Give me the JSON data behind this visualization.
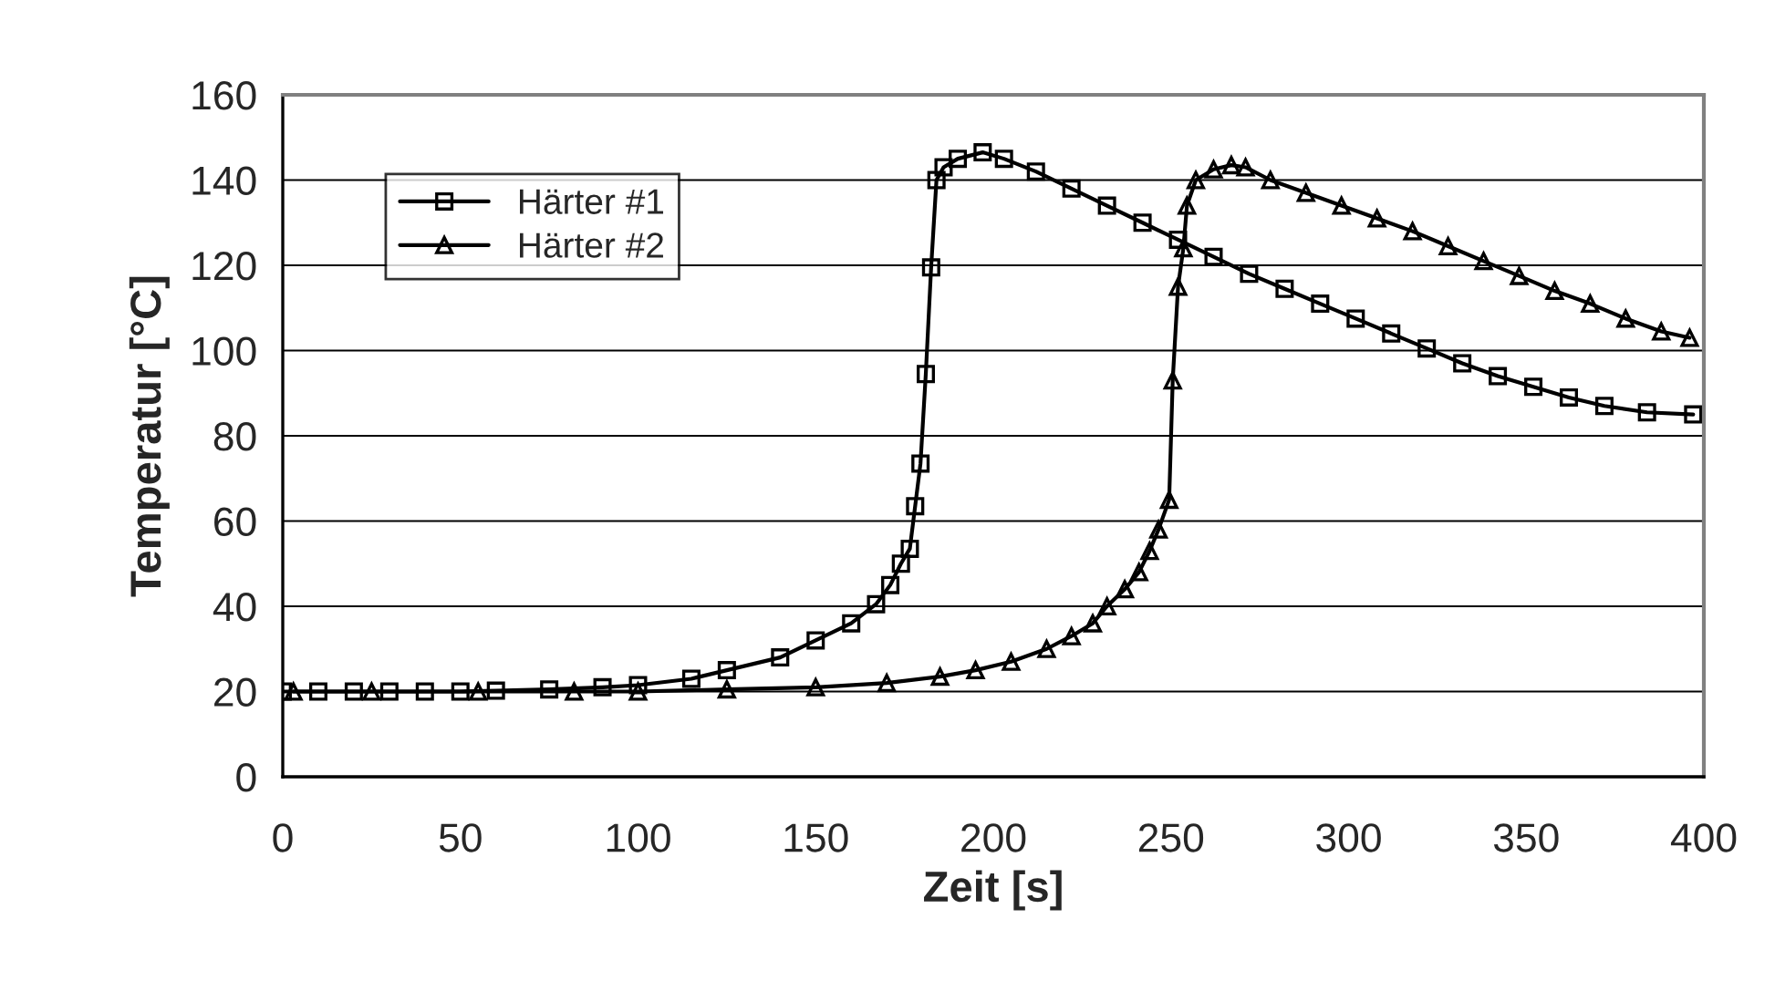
{
  "chart_data": {
    "type": "line",
    "xlabel": "Zeit [s]",
    "ylabel": "Temperatur [°C]",
    "xlim": [
      0,
      400
    ],
    "xticks": [
      0,
      50,
      100,
      150,
      200,
      250,
      300,
      350,
      400
    ],
    "ylim": [
      0,
      160
    ],
    "yticks": [
      0,
      20,
      40,
      60,
      80,
      100,
      120,
      140,
      160
    ],
    "grid": "y",
    "legend": "top left",
    "line_style": "solid",
    "series": [
      {
        "name": "Härter #1",
        "color": "#000000",
        "marker": "square",
        "x": [
          0,
          10,
          20,
          30,
          40,
          50,
          60,
          75,
          90,
          100,
          115,
          125,
          140,
          150,
          160,
          167,
          171,
          174,
          176.5,
          178,
          179.5,
          181,
          182.5,
          184,
          186,
          190,
          197,
          203,
          212,
          222,
          232,
          242,
          252,
          262,
          272,
          282,
          292,
          302,
          312,
          322,
          332,
          342,
          352,
          362,
          372,
          384,
          397
        ],
        "values": [
          20,
          20,
          20,
          20,
          20,
          20,
          20.2,
          20.5,
          21,
          21.5,
          23,
          25,
          28,
          32,
          36,
          40.5,
          45,
          50,
          53.5,
          63.5,
          73.5,
          94.5,
          119.5,
          140,
          143,
          145,
          146.5,
          145,
          142,
          138,
          134,
          130,
          126,
          122,
          118,
          114.5,
          111,
          107.5,
          104,
          100.5,
          97,
          94,
          91.5,
          89,
          87,
          85.5,
          85
        ]
      },
      {
        "name": "Härter #2",
        "color": "#000000",
        "marker": "triangle",
        "x": [
          3,
          25,
          55,
          82,
          100,
          125,
          150,
          170,
          185,
          195,
          205,
          215,
          222,
          228,
          232,
          237,
          241,
          244,
          246.5,
          249.5,
          250.5,
          252,
          253.5,
          254.5,
          257,
          262,
          267,
          271,
          278,
          288,
          298,
          308,
          318,
          328,
          338,
          348,
          358,
          368,
          378,
          388,
          396
        ],
        "values": [
          20,
          20,
          20,
          20,
          20,
          20.5,
          21,
          22,
          23.5,
          25,
          27,
          30,
          33,
          36,
          40,
          44,
          48,
          53,
          58,
          65,
          93,
          115,
          124,
          134,
          140,
          142.5,
          143.5,
          143,
          140,
          137,
          134,
          131,
          128,
          124.5,
          121,
          117.5,
          114,
          111,
          107.5,
          104.5,
          103
        ]
      }
    ]
  }
}
